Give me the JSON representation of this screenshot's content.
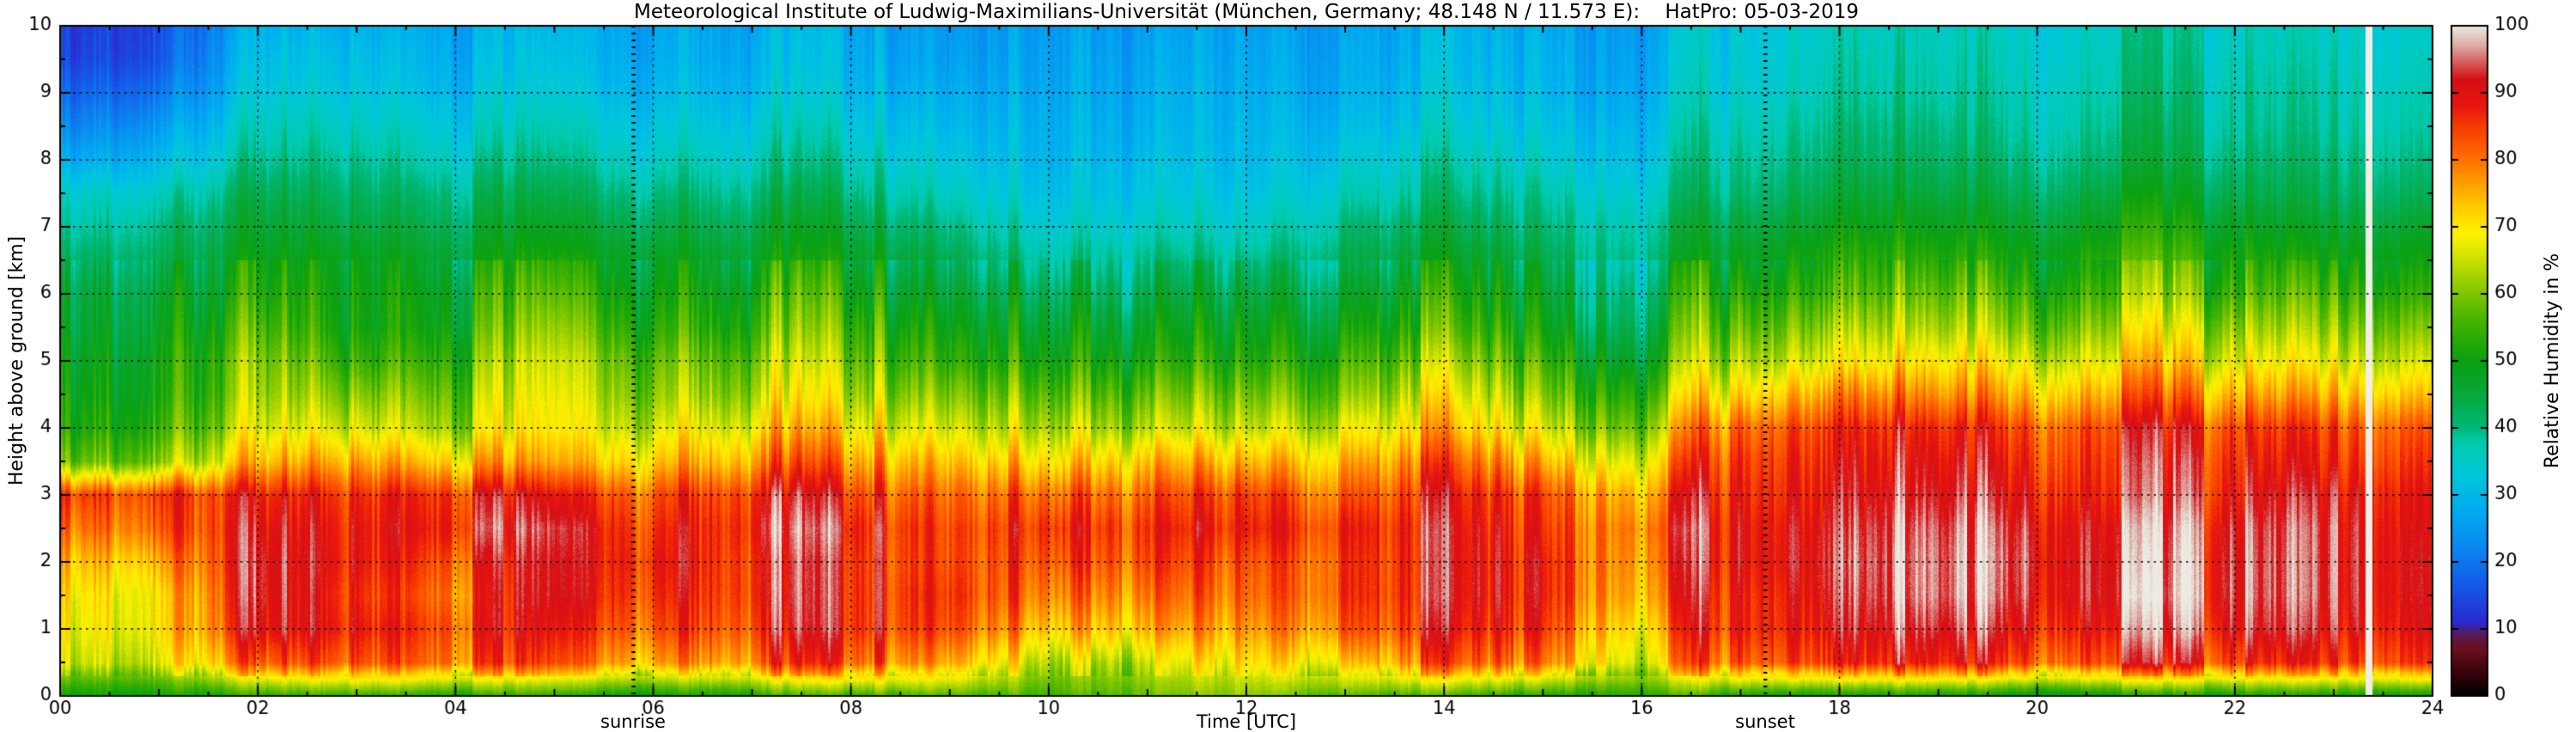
{
  "chart_data": {
    "type": "heatmap",
    "title": "Meteorological Institute of Ludwig-Maximilians-Universität (München, Germany; 48.148 N / 11.573 E):    HatPro: 05-03-2019",
    "xlabel": "Time [UTC]",
    "ylabel": "Height above ground [km]",
    "colorbar_label": "Relative Humidity in %",
    "x_range_hours": [
      0,
      24
    ],
    "y_range_km": [
      0,
      10
    ],
    "colorbar_range_percent": [
      0,
      100
    ],
    "grid_on": true,
    "x_major_ticks": [
      0,
      2,
      4,
      6,
      8,
      10,
      12,
      14,
      16,
      18,
      20,
      22,
      24
    ],
    "x_tick_labels": [
      "00",
      "02",
      "04",
      "06",
      "08",
      "10",
      "12",
      "14",
      "16",
      "18",
      "20",
      "22",
      "24"
    ],
    "y_major_ticks": [
      0,
      1,
      2,
      3,
      4,
      5,
      6,
      7,
      8,
      9,
      10
    ],
    "y_tick_labels": [
      "0",
      "1",
      "2",
      "3",
      "4",
      "5",
      "6",
      "7",
      "8",
      "9",
      "10"
    ],
    "colorbar_ticks": [
      0,
      10,
      20,
      30,
      40,
      50,
      60,
      70,
      80,
      90,
      100
    ],
    "colorbar_tick_labels": [
      "0",
      "10",
      "20",
      "30",
      "40",
      "50",
      "60",
      "70",
      "80",
      "90",
      "100"
    ],
    "annotations": {
      "sunrise_label": "sunrise",
      "sunrise_hour": 5.8,
      "sunset_label": "sunset",
      "sunset_hour": 17.25
    },
    "missing_data_hour": 23.35,
    "colormap_stops": [
      [
        0,
        "#000000"
      ],
      [
        4,
        "#41040e"
      ],
      [
        7,
        "#6b0f1e"
      ],
      [
        9,
        "#5a1a50"
      ],
      [
        11,
        "#2a2ad0"
      ],
      [
        16,
        "#1555e8"
      ],
      [
        22,
        "#0b86f0"
      ],
      [
        28,
        "#00aef0"
      ],
      [
        33,
        "#00c8dc"
      ],
      [
        38,
        "#00cbaa"
      ],
      [
        40,
        "#00b87a"
      ],
      [
        45,
        "#08a83c"
      ],
      [
        50,
        "#0aa010"
      ],
      [
        56,
        "#46b400"
      ],
      [
        62,
        "#9cd000"
      ],
      [
        66,
        "#d8e600"
      ],
      [
        69,
        "#fff200"
      ],
      [
        73,
        "#ffcc00"
      ],
      [
        77,
        "#ff9900"
      ],
      [
        81,
        "#ff6600"
      ],
      [
        85,
        "#f63c00"
      ],
      [
        88,
        "#e81610"
      ],
      [
        92,
        "#d40f14"
      ],
      [
        95,
        "#d96a6a"
      ],
      [
        97,
        "#ddaaa4"
      ],
      [
        99,
        "#e4d6cc"
      ],
      [
        100,
        "#eceae2"
      ]
    ],
    "grid": {
      "hours": [
        0,
        1,
        2,
        3,
        4,
        5,
        6,
        7,
        8,
        9,
        10,
        11,
        12,
        13,
        14,
        15,
        16,
        17,
        18,
        19,
        20,
        21,
        22,
        23,
        24
      ],
      "heights_km": [
        0,
        0.5,
        1,
        1.5,
        2,
        2.5,
        3,
        3.5,
        4,
        4.5,
        5,
        5.5,
        6,
        6.5,
        7,
        7.5,
        8,
        8.5,
        9,
        9.5,
        10
      ],
      "rh_percent": [
        [
          50,
          50,
          52,
          55,
          52,
          52,
          50,
          52,
          55,
          58,
          55,
          58,
          60,
          58,
          55,
          52,
          55,
          52,
          50,
          50,
          48,
          50,
          50,
          50,
          50
        ],
        [
          65,
          66,
          80,
          85,
          82,
          80,
          78,
          80,
          85,
          80,
          62,
          65,
          68,
          75,
          82,
          80,
          70,
          85,
          88,
          88,
          86,
          88,
          86,
          85,
          88
        ],
        [
          68,
          70,
          88,
          90,
          85,
          85,
          85,
          86,
          90,
          88,
          72,
          75,
          74,
          85,
          88,
          86,
          75,
          90,
          92,
          93,
          92,
          93,
          92,
          90,
          92
        ],
        [
          70,
          70,
          90,
          88,
          82,
          88,
          88,
          88,
          90,
          90,
          78,
          80,
          78,
          88,
          90,
          88,
          80,
          90,
          94,
          96,
          95,
          96,
          94,
          92,
          93
        ],
        [
          74,
          75,
          90,
          90,
          85,
          88,
          90,
          88,
          90,
          88,
          82,
          84,
          80,
          88,
          90,
          88,
          82,
          92,
          95,
          96,
          96,
          95,
          94,
          92,
          93
        ],
        [
          80,
          82,
          88,
          90,
          90,
          90,
          88,
          90,
          92,
          88,
          85,
          86,
          85,
          90,
          90,
          86,
          84,
          92,
          94,
          95,
          95,
          94,
          93,
          92,
          92
        ],
        [
          85,
          85,
          85,
          88,
          88,
          85,
          85,
          88,
          88,
          85,
          80,
          82,
          82,
          85,
          88,
          84,
          80,
          90,
          92,
          92,
          92,
          91,
          90,
          90,
          91
        ],
        [
          58,
          60,
          72,
          78,
          74,
          72,
          75,
          78,
          80,
          78,
          70,
          74,
          72,
          78,
          82,
          75,
          72,
          88,
          90,
          90,
          89,
          90,
          88,
          86,
          88
        ],
        [
          52,
          54,
          64,
          68,
          64,
          66,
          68,
          70,
          72,
          70,
          62,
          64,
          62,
          70,
          74,
          66,
          64,
          84,
          88,
          87,
          86,
          88,
          85,
          83,
          85
        ],
        [
          50,
          51,
          60,
          62,
          60,
          64,
          63,
          64,
          66,
          64,
          56,
          58,
          56,
          63,
          68,
          60,
          58,
          74,
          80,
          78,
          77,
          80,
          76,
          74,
          76
        ],
        [
          48,
          50,
          58,
          56,
          56,
          62,
          60,
          60,
          62,
          58,
          50,
          52,
          50,
          58,
          62,
          55,
          52,
          66,
          70,
          70,
          69,
          72,
          68,
          66,
          68
        ],
        [
          46,
          48,
          54,
          52,
          52,
          58,
          55,
          55,
          58,
          54,
          46,
          48,
          46,
          53,
          56,
          50,
          48,
          60,
          64,
          63,
          62,
          66,
          62,
          60,
          62
        ],
        [
          45,
          46,
          50,
          52,
          50,
          54,
          52,
          52,
          54,
          50,
          42,
          44,
          42,
          49,
          52,
          47,
          45,
          55,
          58,
          58,
          57,
          60,
          56,
          55,
          56
        ],
        [
          42,
          43,
          48,
          50,
          47,
          50,
          49,
          48,
          50,
          46,
          38,
          40,
          38,
          45,
          48,
          44,
          42,
          50,
          54,
          53,
          52,
          56,
          52,
          50,
          52
        ],
        [
          38,
          40,
          45,
          46,
          44,
          46,
          45,
          45,
          46,
          42,
          34,
          36,
          34,
          42,
          44,
          41,
          40,
          46,
          50,
          49,
          48,
          52,
          48,
          46,
          48
        ],
        [
          35,
          36,
          42,
          43,
          41,
          42,
          41,
          41,
          42,
          38,
          31,
          33,
          31,
          38,
          40,
          38,
          37,
          42,
          46,
          45,
          44,
          48,
          44,
          42,
          44
        ],
        [
          28,
          30,
          38,
          40,
          37,
          38,
          37,
          37,
          38,
          35,
          29,
          31,
          29,
          35,
          37,
          35,
          34,
          40,
          43,
          42,
          41,
          44,
          41,
          40,
          41
        ],
        [
          22,
          25,
          35,
          37,
          34,
          35,
          34,
          34,
          35,
          32,
          28,
          29,
          28,
          32,
          34,
          32,
          32,
          38,
          41,
          40,
          39,
          42,
          39,
          38,
          39
        ],
        [
          18,
          20,
          32,
          34,
          31,
          32,
          31,
          31,
          32,
          30,
          27,
          28,
          27,
          30,
          32,
          30,
          30,
          36,
          39,
          38,
          38,
          40,
          38,
          37,
          38
        ],
        [
          14,
          16,
          30,
          32,
          29,
          30,
          29,
          29,
          30,
          28,
          26,
          27,
          26,
          29,
          30,
          29,
          29,
          35,
          38,
          37,
          37,
          39,
          37,
          36,
          37
        ],
        [
          13,
          15,
          28,
          30,
          28,
          28,
          28,
          28,
          29,
          27,
          25,
          26,
          25,
          28,
          29,
          28,
          28,
          34,
          37,
          36,
          36,
          38,
          36,
          35,
          36
        ]
      ]
    }
  }
}
